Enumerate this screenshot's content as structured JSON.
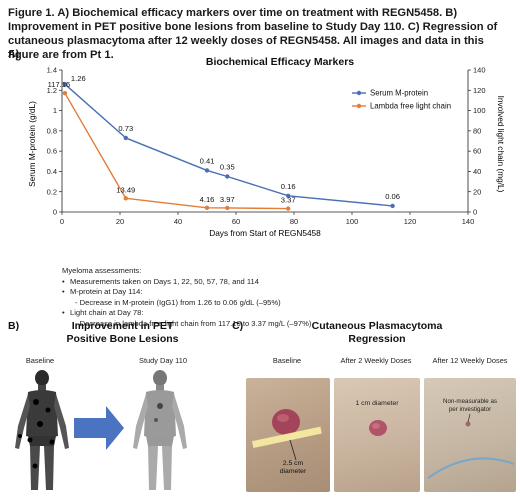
{
  "caption": "Figure 1. A) Biochemical efficacy markers over time on treatment with REGN5458. B) Improvement in PET positive bone lesions from baseline to Study Day 110. C) Regression of cutaneous plasmacytoma after 12 weekly doses of REGN5458. All images and data in this figure are from Pt 1.",
  "panelA": {
    "label": "A)",
    "chart_data": {
      "type": "line",
      "title": "Biochemical Efficacy Markers",
      "xlabel": "Days from Start of REGN5458",
      "ylabel_left": "Serum M-protein (g/dL)",
      "ylabel_right": "Involved light chain (mg/L)",
      "xlim": [
        0,
        140
      ],
      "ylim_left": [
        0,
        1.4
      ],
      "ylim_right": [
        0,
        140
      ],
      "x_ticks": [
        "0",
        "20",
        "40",
        "60",
        "80",
        "100",
        "120",
        "140"
      ],
      "y_left_ticks": [
        "0",
        "0.2",
        "0.4",
        "0.6",
        "0.8",
        "1",
        "1.2",
        "1.4"
      ],
      "y_right_ticks": [
        "0",
        "20",
        "40",
        "60",
        "80",
        "100",
        "120",
        "140"
      ],
      "legend_position": "top-right",
      "series": [
        {
          "name": "Serum M-protein",
          "axis": "left",
          "color": "#4a6fb5",
          "x": [
            1,
            22,
            50,
            57,
            78,
            114
          ],
          "y": [
            1.26,
            0.73,
            0.41,
            0.35,
            0.16,
            0.06
          ],
          "labels": [
            "1.26",
            "0.73",
            "0.41",
            "0.35",
            "0.16",
            "0.06"
          ]
        },
        {
          "name": "Lambda free light chain",
          "axis": "right",
          "color": "#e27d3a",
          "x": [
            1,
            22,
            50,
            57,
            78
          ],
          "y": [
            117.16,
            13.49,
            4.16,
            3.97,
            3.37
          ],
          "labels": [
            "117.16",
            "13.49",
            "4.16",
            "3.97",
            "3.37"
          ]
        }
      ]
    },
    "notes": {
      "heading": "Myeloma assessments:",
      "b1": "Measurements taken on Days 1, 22, 50, 57, 78, and 114",
      "b2": "M-protein at Day 114:",
      "b2_sub": "- Decrease in M-protein (IgG1) from 1.26 to 0.06 g/dL (–95%)",
      "b3": "Light chain at Day 78:",
      "b3_sub": "- Decrease in lambda free light chain from 117.16 to 3.37 mg/L (–97%)"
    }
  },
  "panelB": {
    "label": "B)",
    "title_line1": "Improvement in PET",
    "title_line2": "Positive Bone Lesions",
    "img1_label": "Baseline",
    "img2_label": "Study Day 110"
  },
  "panelC": {
    "label": "C)",
    "title_line1": "Cutaneous Plasmacytoma",
    "title_line2": "Regression",
    "img1_label": "Baseline",
    "img2_label": "After 2 Weekly Doses",
    "img3_label": "After 12 Weekly Doses",
    "img1_annotation_line1": "2.5 cm",
    "img1_annotation_line2": "diameter",
    "img2_annotation": "1 cm diameter",
    "img3_annotation_line1": "Non-measurable as",
    "img3_annotation_line2": "per investigator"
  }
}
